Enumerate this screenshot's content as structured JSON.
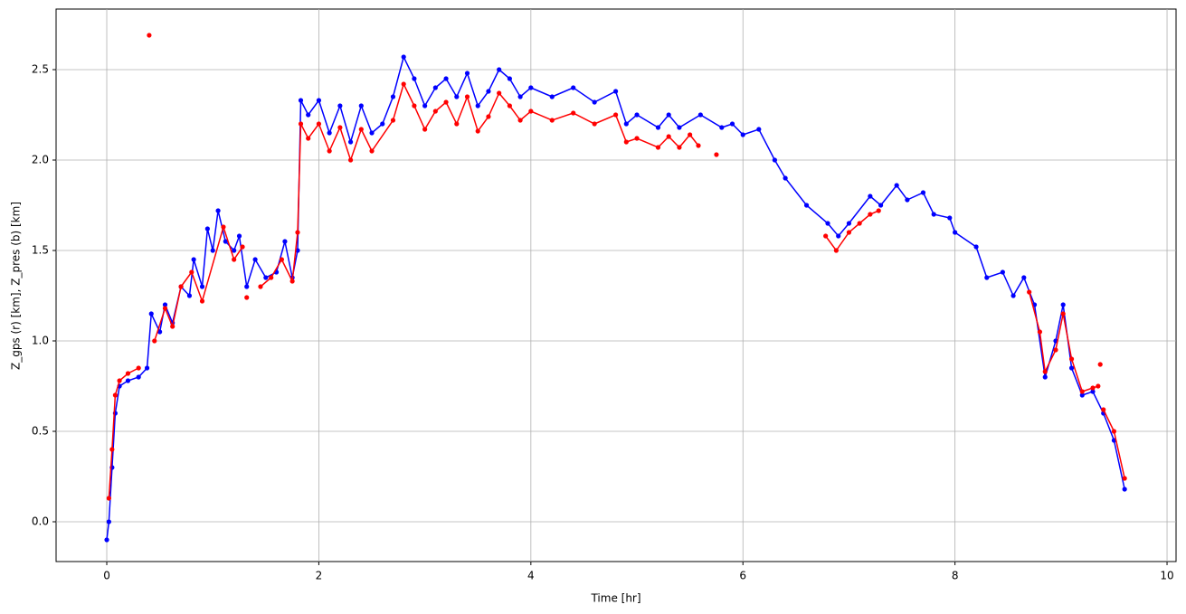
{
  "chart_data": {
    "type": "line",
    "xlabel": "Time [hr]",
    "ylabel": "Z_gps (r) [km],  Z_pres (b) [km]",
    "xlim": [
      -0.478,
      10.085
    ],
    "ylim": [
      -0.22,
      2.835
    ],
    "xticks": [
      0,
      2,
      4,
      6,
      8,
      10
    ],
    "yticks": [
      {
        "value": 0,
        "label": "0.0"
      },
      {
        "value": 0.5,
        "label": "0.5"
      },
      {
        "value": 1,
        "label": "1.0"
      },
      {
        "value": 1.5,
        "label": "1.5"
      },
      {
        "value": 2,
        "label": "2.0"
      },
      {
        "value": 2.5,
        "label": "2.5"
      }
    ],
    "grid": true,
    "series": [
      {
        "color": "#0000ff",
        "x": [
          0,
          0.02,
          0.05,
          0.08,
          0.12,
          0.2,
          0.3,
          0.38,
          0.42,
          0.5,
          0.55,
          0.62,
          0.7,
          0.78,
          0.82,
          0.9,
          0.95,
          1.0,
          1.05,
          1.12,
          1.2,
          1.25,
          1.32,
          1.4,
          1.5,
          1.6,
          1.68,
          1.75,
          1.8,
          1.83,
          1.9,
          2.0,
          2.1,
          2.2,
          2.3,
          2.4,
          2.5,
          2.6,
          2.7,
          2.8,
          2.9,
          3.0,
          3.1,
          3.2,
          3.3,
          3.4,
          3.5,
          3.6,
          3.7,
          3.8,
          3.9,
          4.0,
          4.2,
          4.4,
          4.6,
          4.8,
          4.9,
          5.0,
          5.2,
          5.3,
          5.4,
          5.6,
          5.8,
          5.9,
          6.0,
          6.15,
          6.3,
          6.4,
          6.6,
          6.8,
          6.9,
          7.0,
          7.2,
          7.3,
          7.45,
          7.55,
          7.7,
          7.8,
          7.95,
          8.0,
          8.2,
          8.3,
          8.45,
          8.55,
          8.65,
          8.75,
          8.85,
          8.95,
          9.02,
          9.1,
          9.2,
          9.3,
          9.4,
          9.5,
          9.6
        ],
        "values": [
          -0.1,
          0.0,
          0.3,
          0.6,
          0.75,
          0.78,
          0.8,
          0.85,
          1.15,
          1.05,
          1.2,
          1.1,
          1.3,
          1.25,
          1.45,
          1.3,
          1.62,
          1.5,
          1.72,
          1.55,
          1.5,
          1.58,
          1.3,
          1.45,
          1.35,
          1.38,
          1.55,
          1.35,
          1.5,
          2.33,
          2.25,
          2.33,
          2.15,
          2.3,
          2.1,
          2.3,
          2.15,
          2.2,
          2.35,
          2.57,
          2.45,
          2.3,
          2.4,
          2.45,
          2.35,
          2.48,
          2.3,
          2.38,
          2.5,
          2.45,
          2.35,
          2.4,
          2.35,
          2.4,
          2.32,
          2.38,
          2.2,
          2.25,
          2.18,
          2.25,
          2.18,
          2.25,
          2.18,
          2.2,
          2.14,
          2.17,
          2.0,
          1.9,
          1.75,
          1.65,
          1.58,
          1.65,
          1.8,
          1.75,
          1.86,
          1.78,
          1.82,
          1.7,
          1.68,
          1.6,
          1.52,
          1.35,
          1.38,
          1.25,
          1.35,
          1.2,
          0.8,
          1.0,
          1.2,
          0.85,
          0.7,
          0.72,
          0.6,
          0.45,
          0.18
        ]
      },
      {
        "color": "#ff0000",
        "x": [
          0.02,
          0.05,
          0.08,
          0.12,
          0.2,
          0.3,
          null,
          0.4,
          null,
          0.45,
          0.55,
          0.62,
          0.7,
          0.8,
          0.9,
          1.1,
          1.2,
          1.28,
          null,
          1.32,
          null,
          1.45,
          1.55,
          1.65,
          1.75,
          1.8,
          1.83,
          1.9,
          2.0,
          2.1,
          2.2,
          2.3,
          2.4,
          2.5,
          2.7,
          2.8,
          2.9,
          3.0,
          3.1,
          3.2,
          3.3,
          3.4,
          3.5,
          3.6,
          3.7,
          3.8,
          3.9,
          4.0,
          4.2,
          4.4,
          4.6,
          4.8,
          4.9,
          5.0,
          5.2,
          5.3,
          5.4,
          5.5,
          5.58,
          null,
          5.75,
          null,
          6.78,
          6.88,
          7.0,
          7.1,
          7.2,
          7.28,
          null,
          8.7,
          8.8,
          8.85,
          8.95,
          9.02,
          9.1,
          9.2,
          9.3,
          9.35,
          null,
          9.37,
          null,
          9.4,
          9.5,
          9.6
        ],
        "values": [
          0.13,
          0.4,
          0.7,
          0.78,
          0.82,
          0.85,
          null,
          2.69,
          null,
          1.0,
          1.18,
          1.08,
          1.3,
          1.38,
          1.22,
          1.63,
          1.45,
          1.52,
          null,
          1.24,
          null,
          1.3,
          1.35,
          1.45,
          1.33,
          1.6,
          2.2,
          2.12,
          2.2,
          2.05,
          2.18,
          2.0,
          2.17,
          2.05,
          2.22,
          2.42,
          2.3,
          2.17,
          2.27,
          2.32,
          2.2,
          2.35,
          2.16,
          2.24,
          2.37,
          2.3,
          2.22,
          2.27,
          2.22,
          2.26,
          2.2,
          2.25,
          2.1,
          2.12,
          2.07,
          2.13,
          2.07,
          2.14,
          2.08,
          null,
          2.03,
          null,
          1.58,
          1.5,
          1.6,
          1.65,
          1.7,
          1.72,
          null,
          1.27,
          1.05,
          0.83,
          0.95,
          1.15,
          0.9,
          0.72,
          0.74,
          0.75,
          null,
          0.87,
          null,
          0.62,
          0.5,
          0.24
        ]
      }
    ]
  }
}
